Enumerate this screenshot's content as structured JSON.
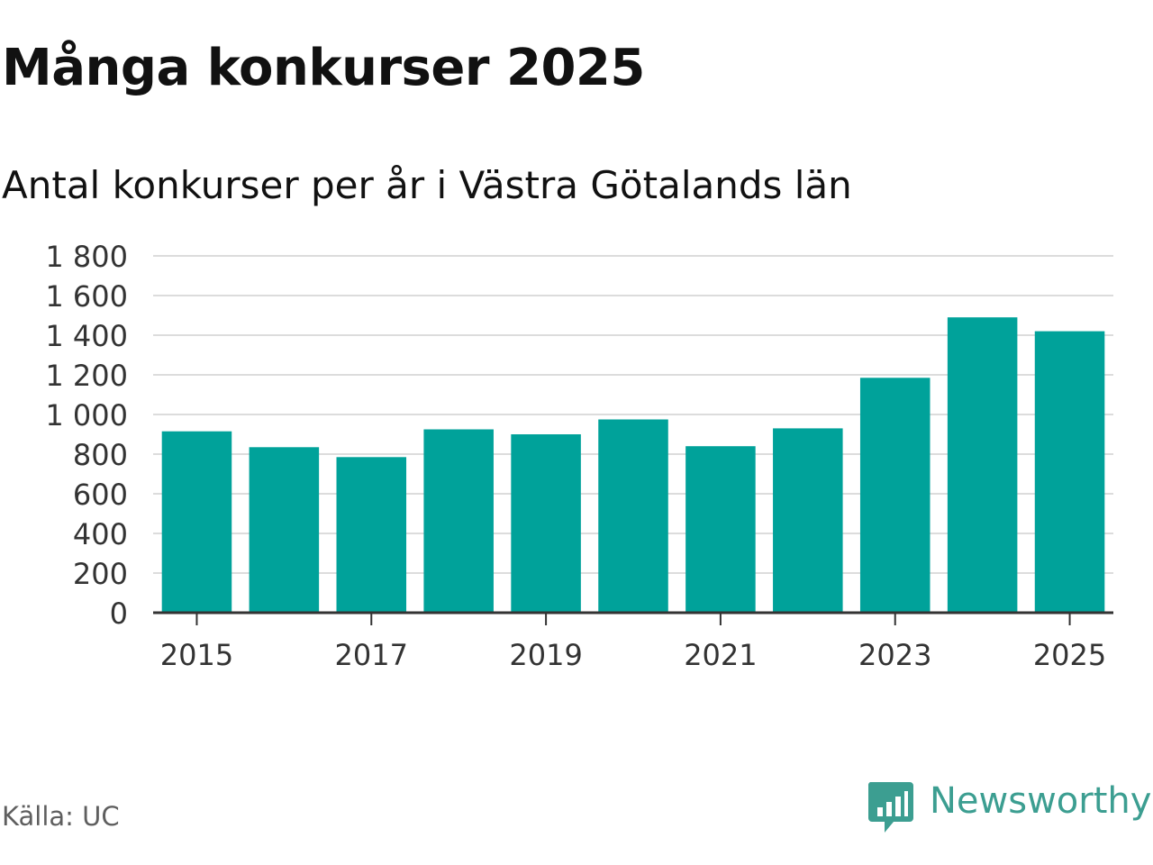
{
  "title": "Många konkurser 2025",
  "subtitle": "Antal konkurser per år i Västra Götalands län",
  "source": "Källa: UC",
  "brand": {
    "name": "Newsworthy",
    "logo_icon": "bar-chart-speech-bubble-icon",
    "color": "#3c9e91"
  },
  "chart_data": {
    "type": "bar",
    "categories": [
      "2015",
      "2016",
      "2017",
      "2018",
      "2019",
      "2020",
      "2021",
      "2022",
      "2023",
      "2024",
      "2025"
    ],
    "x_tick_labels": [
      "2015",
      "2017",
      "2019",
      "2021",
      "2023",
      "2025"
    ],
    "values": [
      915,
      835,
      785,
      925,
      900,
      975,
      840,
      930,
      1185,
      1490,
      1420
    ],
    "y_tick_labels": [
      "0",
      "200",
      "400",
      "600",
      "800",
      "1 000",
      "1 200",
      "1 400",
      "1 600",
      "1 800"
    ],
    "ylim": [
      0,
      1800
    ],
    "grid": true,
    "bar_color": "#00a29a",
    "grid_color": "#dcdcdc",
    "axis_color": "#333333"
  }
}
